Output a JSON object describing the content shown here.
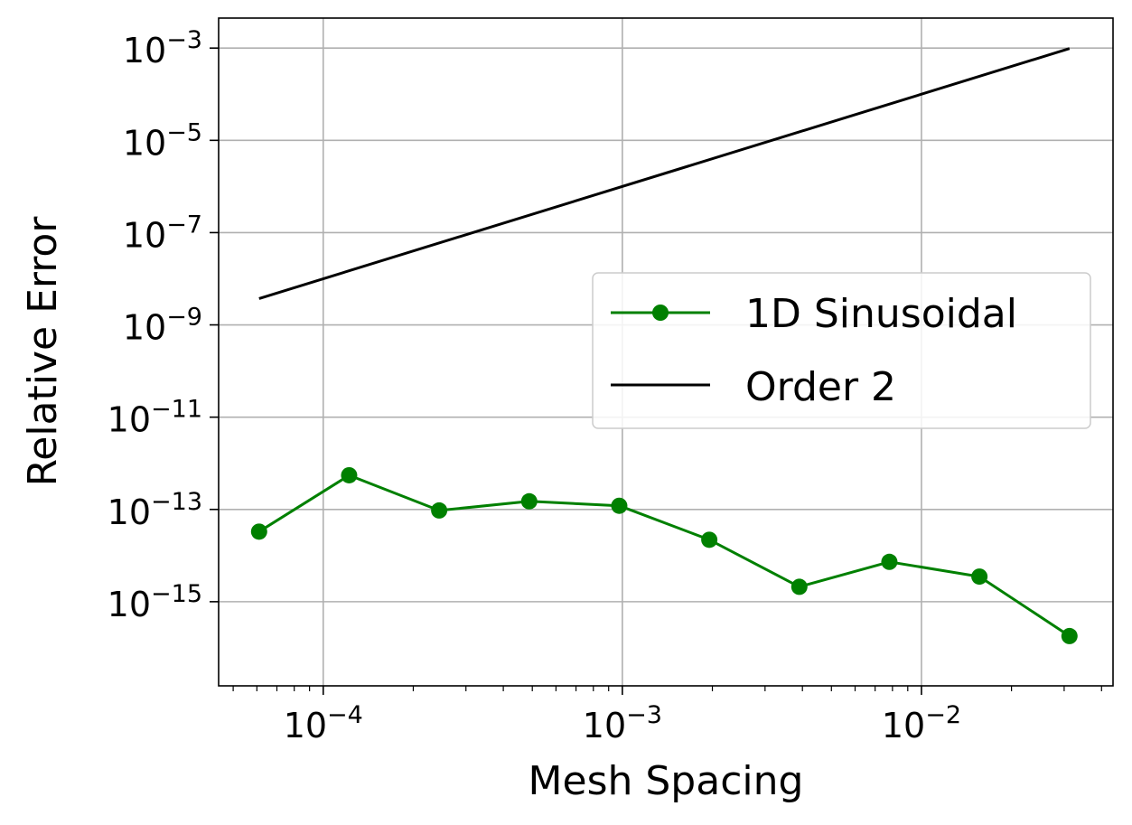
{
  "chart_data": {
    "type": "line",
    "xscale": "log",
    "yscale": "log",
    "xlabel": "Mesh Spacing",
    "ylabel": "Relative Error",
    "xlim": [
      4.47e-05,
      0.0437
    ],
    "ylim": [
      1.5e-17,
      0.00447
    ],
    "grid": true,
    "legend_position": "center-right",
    "x_ticks": [
      {
        "value": 0.0001,
        "base": "10",
        "exp": "−4"
      },
      {
        "value": 0.001,
        "base": "10",
        "exp": "−3"
      },
      {
        "value": 0.01,
        "base": "10",
        "exp": "−2"
      }
    ],
    "y_ticks": [
      {
        "value": 1e-15,
        "base": "10",
        "exp": "−15"
      },
      {
        "value": 1e-13,
        "base": "10",
        "exp": "−13"
      },
      {
        "value": 1e-11,
        "base": "10",
        "exp": "−11"
      },
      {
        "value": 1e-09,
        "base": "10",
        "exp": "−9"
      },
      {
        "value": 1e-07,
        "base": "10",
        "exp": "−7"
      },
      {
        "value": 1e-05,
        "base": "10",
        "exp": "−5"
      },
      {
        "value": 0.001,
        "base": "10",
        "exp": "−3"
      }
    ],
    "series": [
      {
        "name": "1D Sinusoidal",
        "color": "#008000",
        "marker": "circle",
        "x": [
          6.104e-05,
          0.00012207,
          0.00024414,
          0.00048828,
          0.00097656,
          0.00195313,
          0.00390625,
          0.0078125,
          0.015625,
          0.03125
        ],
        "y": [
          3.3e-14,
          5.5e-13,
          9.5e-14,
          1.5e-13,
          1.2e-13,
          2.2e-14,
          2.1e-15,
          7.3e-15,
          3.5e-15,
          1.8e-16
        ]
      },
      {
        "name": "Order 2",
        "color": "#000000",
        "marker": "none",
        "x": [
          6.104e-05,
          0.03125
        ],
        "y": [
          3.73e-09,
          0.000977
        ]
      }
    ]
  }
}
